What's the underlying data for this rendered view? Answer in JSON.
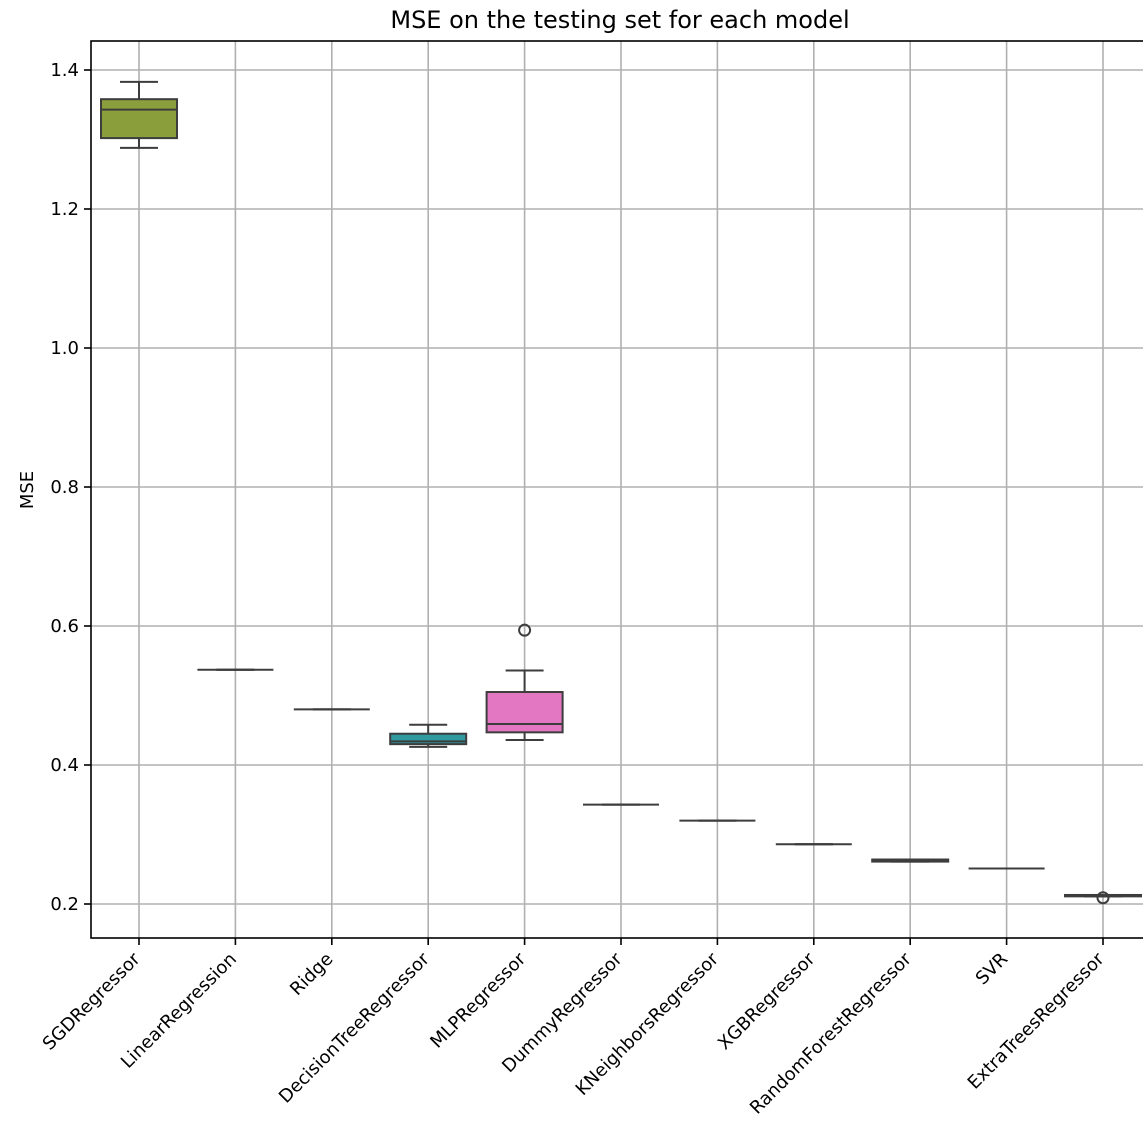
{
  "chart_data": {
    "type": "box",
    "title": "MSE on the testing set for each model",
    "xlabel": "",
    "ylabel": "MSE",
    "ylim": [
      0.15,
      1.44
    ],
    "yticks": [
      0.2,
      0.4,
      0.6,
      0.8,
      1.0,
      1.2,
      1.4
    ],
    "ytick_labels": [
      "0.2",
      "0.4",
      "0.6",
      "0.8",
      "1.0",
      "1.2",
      "1.4"
    ],
    "grid": true,
    "categories": [
      "SGDRegressor",
      "LinearRegression",
      "Ridge",
      "DecisionTreeRegressor",
      "MLPRegressor",
      "DummyRegressor",
      "KNeighborsRegressor",
      "XGBRegressor",
      "RandomForestRegressor",
      "SVR",
      "ExtraTreesRegressor"
    ],
    "boxes": [
      {
        "category": "SGDRegressor",
        "whislo": 1.288,
        "q1": 1.302,
        "median": 1.343,
        "q3": 1.358,
        "whishi": 1.383,
        "fliers": [],
        "color": "#8a9e3c"
      },
      {
        "category": "LinearRegression",
        "whislo": 0.537,
        "q1": 0.537,
        "median": 0.537,
        "q3": 0.537,
        "whishi": 0.537,
        "fliers": [],
        "color": "#c88b4a"
      },
      {
        "category": "Ridge",
        "whislo": 0.48,
        "q1": 0.48,
        "median": 0.48,
        "q3": 0.48,
        "whishi": 0.48,
        "fliers": [],
        "color": "#4f9e5a"
      },
      {
        "category": "DecisionTreeRegressor",
        "whislo": 0.426,
        "q1": 0.43,
        "median": 0.434,
        "q3": 0.445,
        "whishi": 0.458,
        "fliers": [],
        "color": "#2f9aa0"
      },
      {
        "category": "MLPRegressor",
        "whislo": 0.436,
        "q1": 0.447,
        "median": 0.459,
        "q3": 0.505,
        "whishi": 0.536,
        "fliers": [
          0.594
        ],
        "color": "#e377c2"
      },
      {
        "category": "DummyRegressor",
        "whislo": 0.343,
        "q1": 0.343,
        "median": 0.343,
        "q3": 0.343,
        "whishi": 0.343,
        "fliers": [],
        "color": "#7f7f7f"
      },
      {
        "category": "KNeighborsRegressor",
        "whislo": 0.32,
        "q1": 0.32,
        "median": 0.32,
        "q3": 0.32,
        "whishi": 0.32,
        "fliers": [],
        "color": "#bcbd22"
      },
      {
        "category": "XGBRegressor",
        "whislo": 0.286,
        "q1": 0.286,
        "median": 0.286,
        "q3": 0.286,
        "whishi": 0.286,
        "fliers": [],
        "color": "#17becf"
      },
      {
        "category": "RandomForestRegressor",
        "whislo": 0.261,
        "q1": 0.261,
        "median": 0.262,
        "q3": 0.264,
        "whishi": 0.264,
        "fliers": [],
        "color": "#9467bd"
      },
      {
        "category": "SVR",
        "whislo": 0.251,
        "q1": 0.251,
        "median": 0.251,
        "q3": 0.251,
        "whishi": 0.251,
        "fliers": [],
        "color": "#d62728"
      },
      {
        "category": "ExtraTreesRegressor",
        "whislo": 0.211,
        "q1": 0.211,
        "median": 0.212,
        "q3": 0.213,
        "whishi": 0.213,
        "fliers": [
          0.209
        ],
        "color": "#1f77b4"
      }
    ]
  }
}
